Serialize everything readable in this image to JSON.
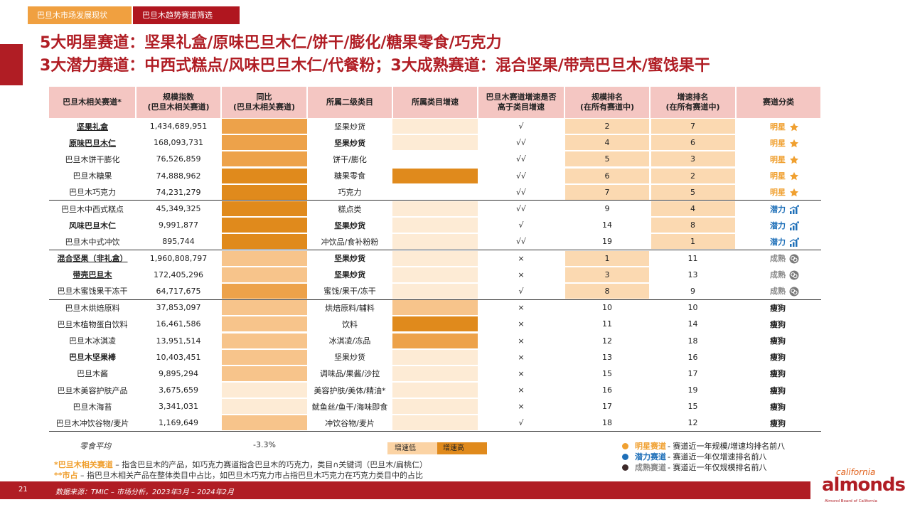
{
  "tabs": [
    "巴旦木市场发展现状",
    "巴旦木趋势赛道筛选"
  ],
  "title_line1": "5大明星赛道：坚果礼盒/原味巴旦木仁/饼干/膨化/糖果零食/巧克力",
  "title_line2": "3大潜力赛道：中西式糕点/风味巴旦木仁/代餐粉；3大成熟赛道：混合坚果/带壳巴旦木/蜜饯果干",
  "headers": [
    "巴旦木相关赛道*",
    "规模指数\n(巴旦木相关赛道)",
    "同比\n(巴旦木相关赛道)",
    "所属二级类目",
    "所属类目增速",
    "巴旦木赛道增速是否\n高于类目增速",
    "规模排名\n(在所有赛道中)",
    "增速排名\n(在所有赛道中)",
    "赛道分类"
  ],
  "colors": {
    "yoy_level1": "#fdebd5",
    "yoy_level2": "#f7c48b",
    "yoy_level3": "#eda24a",
    "yoy_level4": "#e08a1c",
    "rank_highlight": "#fbd9b1",
    "star": "#f0a030",
    "potential": "#1e6fb8",
    "mature": "#8a8a8a",
    "mature_dot": "#3d2a2a"
  },
  "rows": [
    {
      "name": "坚果礼盒",
      "bold": true,
      "underline": true,
      "index": "1,434,689,951",
      "yoy": 3,
      "sub": "坚果炒货",
      "sub_bold": false,
      "cat_speed": 1,
      "higher": "√",
      "size_rank": "2",
      "size_hl": true,
      "growth_rank": "7",
      "growth_hl": true,
      "cls": "明星",
      "type": "star",
      "group_top": false
    },
    {
      "name": "原味巴旦木仁",
      "bold": true,
      "underline": true,
      "index": "168,093,731",
      "yoy": 3,
      "sub": "坚果炒货",
      "sub_bold": true,
      "cat_speed": 1,
      "higher": "√√",
      "size_rank": "4",
      "size_hl": true,
      "growth_rank": "6",
      "growth_hl": true,
      "cls": "明星",
      "type": "star",
      "group_top": false
    },
    {
      "name": "巴旦木饼干膨化",
      "bold": false,
      "underline": false,
      "index": "76,526,859",
      "yoy": 3,
      "sub": "饼干/膨化",
      "sub_bold": false,
      "cat_speed": 0,
      "higher": "√√",
      "size_rank": "5",
      "size_hl": true,
      "growth_rank": "3",
      "growth_hl": true,
      "cls": "明星",
      "type": "star",
      "group_top": false
    },
    {
      "name": "巴旦木糖果",
      "bold": false,
      "underline": false,
      "index": "74,888,962",
      "yoy": 4,
      "sub": "糖果零食",
      "sub_bold": false,
      "cat_speed": 4,
      "higher": "√√",
      "size_rank": "6",
      "size_hl": true,
      "growth_rank": "2",
      "growth_hl": true,
      "cls": "明星",
      "type": "star",
      "group_top": false
    },
    {
      "name": "巴旦木巧克力",
      "bold": false,
      "underline": false,
      "index": "74,231,279",
      "yoy": 4,
      "sub": "巧克力",
      "sub_bold": false,
      "cat_speed": 0,
      "higher": "√√",
      "size_rank": "7",
      "size_hl": true,
      "growth_rank": "5",
      "growth_hl": true,
      "cls": "明星",
      "type": "star",
      "group_top": false
    },
    {
      "name": "巴旦木中西式糕点",
      "bold": false,
      "underline": false,
      "index": "45,349,325",
      "yoy": 4,
      "sub": "糕点类",
      "sub_bold": false,
      "cat_speed": 1,
      "higher": "√√",
      "size_rank": "9",
      "size_hl": false,
      "growth_rank": "4",
      "growth_hl": true,
      "cls": "潜力",
      "type": "potential",
      "group_top": true
    },
    {
      "name": "风味巴旦木仁",
      "bold": true,
      "underline": false,
      "index": "9,991,877",
      "yoy": 4,
      "sub": "坚果炒货",
      "sub_bold": true,
      "cat_speed": 1,
      "higher": "√",
      "size_rank": "14",
      "size_hl": false,
      "growth_rank": "8",
      "growth_hl": true,
      "cls": "潜力",
      "type": "potential",
      "group_top": false
    },
    {
      "name": "巴旦木中式冲饮",
      "bold": false,
      "underline": false,
      "index": "895,744",
      "yoy": 4,
      "sub": "冲饮品/食补粉粉",
      "sub_bold": false,
      "cat_speed": 1,
      "higher": "√√",
      "size_rank": "19",
      "size_hl": false,
      "growth_rank": "1",
      "growth_hl": true,
      "cls": "潜力",
      "type": "potential",
      "group_top": false
    },
    {
      "name": "混合坚果（非礼盒）",
      "bold": true,
      "underline": true,
      "index": "1,960,808,797",
      "yoy": 2,
      "sub": "坚果炒货",
      "sub_bold": true,
      "cat_speed": 1,
      "higher": "×",
      "size_rank": "1",
      "size_hl": true,
      "growth_rank": "11",
      "growth_hl": false,
      "cls": "成熟",
      "type": "mature",
      "group_top": true
    },
    {
      "name": "带壳巴旦木",
      "bold": true,
      "underline": true,
      "index": "172,405,296",
      "yoy": 2,
      "sub": "坚果炒货",
      "sub_bold": true,
      "cat_speed": 1,
      "higher": "×",
      "size_rank": "3",
      "size_hl": true,
      "growth_rank": "13",
      "growth_hl": false,
      "cls": "成熟",
      "type": "mature",
      "group_top": false
    },
    {
      "name": "巴旦木蜜饯果干冻干",
      "bold": false,
      "underline": false,
      "index": "64,717,675",
      "yoy": 3,
      "sub": "蜜饯/果干/冻干",
      "sub_bold": false,
      "cat_speed": 1,
      "higher": "√",
      "size_rank": "8",
      "size_hl": true,
      "growth_rank": "9",
      "growth_hl": false,
      "cls": "成熟",
      "type": "mature",
      "group_top": false
    },
    {
      "name": "巴旦木烘焙原料",
      "bold": false,
      "underline": false,
      "index": "37,853,097",
      "yoy": 2,
      "sub": "烘焙原料/辅料",
      "sub_bold": false,
      "cat_speed": 2,
      "higher": "×",
      "size_rank": "10",
      "size_hl": false,
      "growth_rank": "10",
      "growth_hl": false,
      "cls": "瘦狗",
      "type": "thin",
      "group_top": true
    },
    {
      "name": "巴旦木植物蛋白饮料",
      "bold": false,
      "underline": false,
      "index": "16,461,586",
      "yoy": 2,
      "sub": "饮料",
      "sub_bold": false,
      "cat_speed": 4,
      "higher": "×",
      "size_rank": "11",
      "size_hl": false,
      "growth_rank": "14",
      "growth_hl": false,
      "cls": "瘦狗",
      "type": "thin",
      "group_top": false
    },
    {
      "name": "巴旦木冰淇凌",
      "bold": false,
      "underline": false,
      "index": "13,951,514",
      "yoy": 2,
      "sub": "冰淇凌/冻品",
      "sub_bold": false,
      "cat_speed": 3,
      "higher": "×",
      "size_rank": "12",
      "size_hl": false,
      "growth_rank": "18",
      "growth_hl": false,
      "cls": "瘦狗",
      "type": "thin",
      "group_top": false
    },
    {
      "name": "巴旦木坚果棒",
      "bold": true,
      "underline": false,
      "index": "10,403,451",
      "yoy": 2,
      "sub": "坚果炒货",
      "sub_bold": false,
      "cat_speed": 1,
      "higher": "×",
      "size_rank": "13",
      "size_hl": false,
      "growth_rank": "16",
      "growth_hl": false,
      "cls": "瘦狗",
      "type": "thin",
      "group_top": false
    },
    {
      "name": "巴旦木酱",
      "bold": false,
      "underline": false,
      "index": "9,895,294",
      "yoy": 2,
      "sub": "调味品/果酱/沙拉",
      "sub_bold": false,
      "cat_speed": 1,
      "higher": "×",
      "size_rank": "15",
      "size_hl": false,
      "growth_rank": "17",
      "growth_hl": false,
      "cls": "瘦狗",
      "type": "thin",
      "group_top": false
    },
    {
      "name": "巴旦木美容护肤产品",
      "bold": false,
      "underline": false,
      "index": "3,675,659",
      "yoy": 1,
      "sub": "美容护肤/美体/精油*",
      "sub_bold": false,
      "cat_speed": 1,
      "higher": "×",
      "size_rank": "16",
      "size_hl": false,
      "growth_rank": "19",
      "growth_hl": false,
      "cls": "瘦狗",
      "type": "thin",
      "group_top": false
    },
    {
      "name": "巴旦木海苔",
      "bold": false,
      "underline": false,
      "index": "3,341,031",
      "yoy": 1,
      "sub": "鱿鱼丝/鱼干/海味即食",
      "sub_bold": false,
      "cat_speed": 1,
      "higher": "×",
      "size_rank": "17",
      "size_hl": false,
      "growth_rank": "15",
      "growth_hl": false,
      "cls": "瘦狗",
      "type": "thin",
      "group_top": false
    },
    {
      "name": "巴旦木冲饮谷物/麦片",
      "bold": false,
      "underline": false,
      "index": "1,169,649",
      "yoy": 2,
      "sub": "冲饮谷物/麦片",
      "sub_bold": false,
      "cat_speed": 1,
      "higher": "√",
      "size_rank": "18",
      "size_hl": false,
      "growth_rank": "12",
      "growth_hl": false,
      "cls": "瘦狗",
      "type": "thin",
      "group_top": false
    }
  ],
  "avg_label": "零食平均",
  "avg_value": "-3.3%",
  "legend_low": "增速低",
  "legend_high": "增速高",
  "note1_key": "*巴旦木相关赛道",
  "note1_text": " – 指含巴旦木的产品，如巧克力赛道指含巴旦木的巧克力，类目∩关键词（巴旦木/扁桃仁）",
  "note2_key": "**市占",
  "note2_text": " – 指巴旦木相关产品在整体类目中占比，如巴旦木巧克力市占指巴旦木巧克力在巧克力类目中的占比",
  "keys": [
    {
      "name": "明星赛道",
      "desc": " - 赛道近一年规模/增速均排名前八",
      "color": "#f0a030"
    },
    {
      "name": "潜力赛道",
      "desc": " - 赛道近一年仅增速排名前八",
      "color": "#1e6fb8"
    },
    {
      "name": "成熟赛道",
      "desc": " - 赛道近一年仅规模排名前八",
      "color": "#3d2a2a"
    }
  ],
  "page_number": "21",
  "source": "数据来源：TMIC – 市场分析，2023年3月 – 2024年2月",
  "logo": {
    "top": "california",
    "main": "almonds",
    "sub": "Almond Board of California"
  }
}
